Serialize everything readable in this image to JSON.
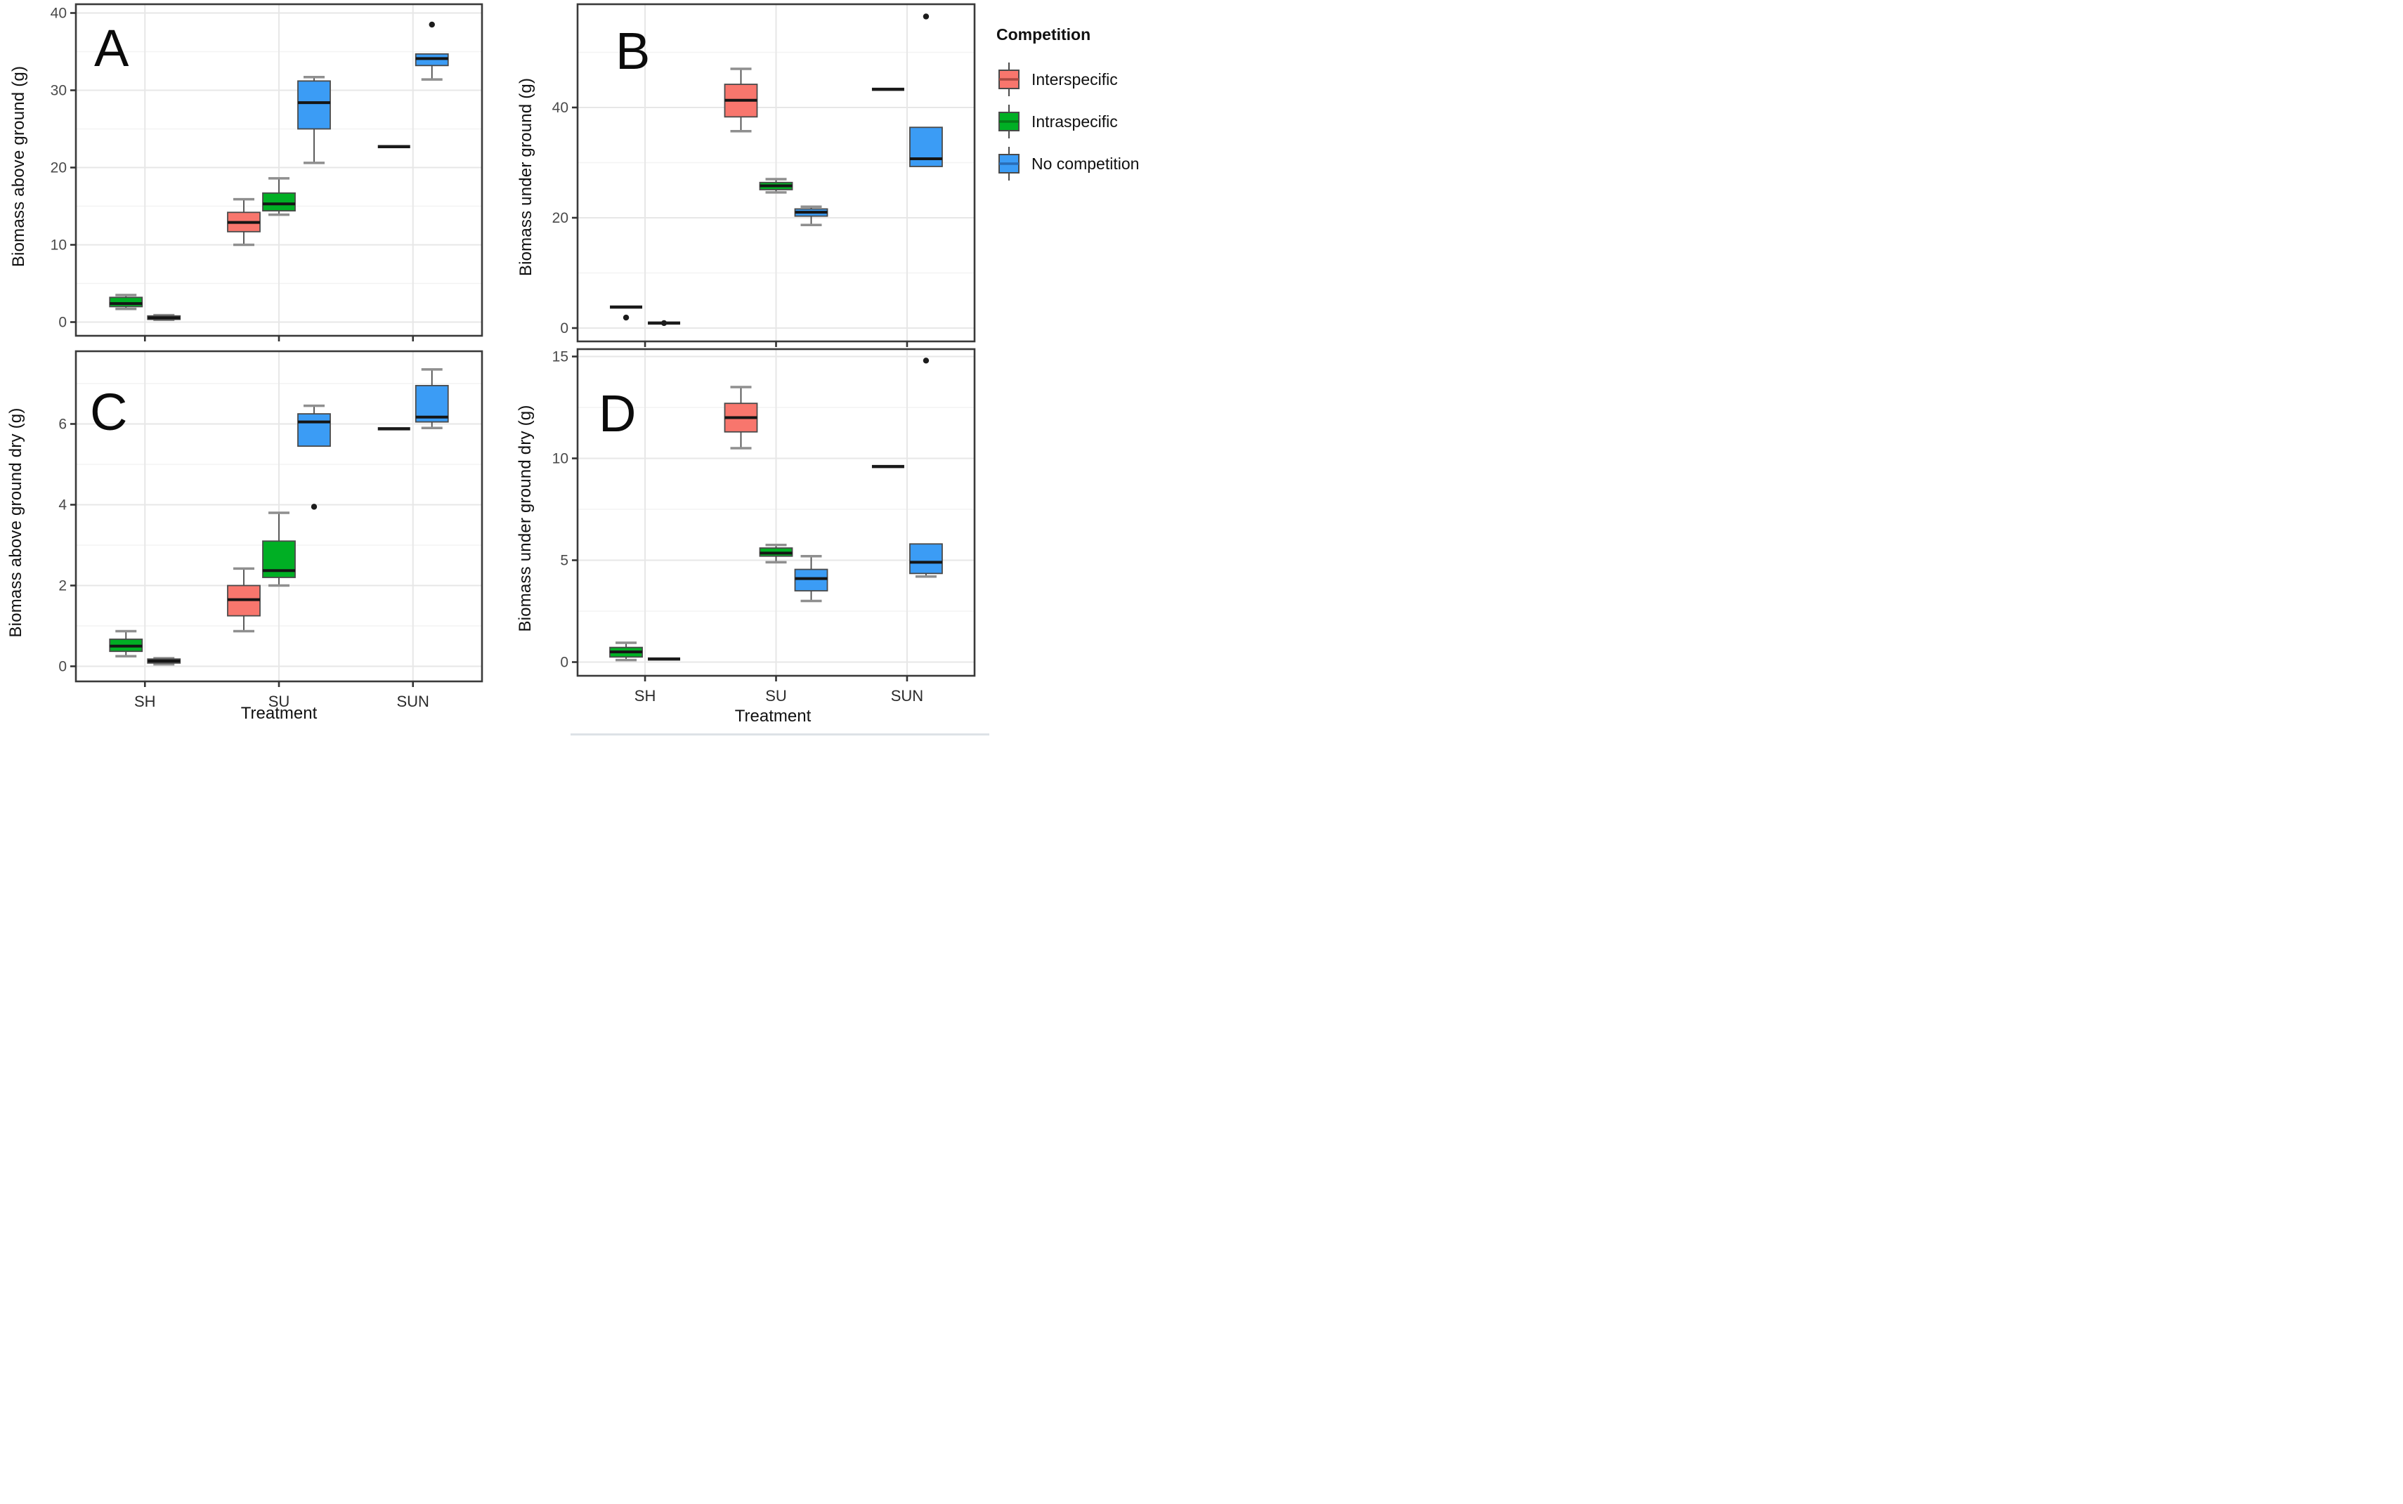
{
  "figure": {
    "background": "#ffffff"
  },
  "colors": {
    "interspecific": "#F8766D",
    "intraspecific": "#00AF24",
    "no_competition": "#3B9CF5",
    "interspecific_dark": "#a94a43",
    "intraspecific_dark": "#067a18",
    "no_competition_dark": "#2a6db5",
    "box_border": "#4a4a4a",
    "median": "#151515",
    "whisker_cap": "#8f8f8f",
    "grid_major": "#e7e7e7",
    "grid_minor": "#f3f3f3",
    "frame": "#3a3a3a",
    "tick_label": "#4a4a4a"
  },
  "legend": {
    "title": "Competition",
    "items": [
      {
        "id": "interspecific",
        "label": "Interspecific"
      },
      {
        "id": "intraspecific",
        "label": "Intraspecific"
      },
      {
        "id": "no_competition",
        "label": "No competition"
      }
    ]
  },
  "x_axis": {
    "title_left": "Treatment",
    "title_right": "Treatment",
    "categories": [
      "SH",
      "SU",
      "SUN"
    ]
  },
  "chart_data": {
    "type": "boxplot",
    "layout": {
      "rows": 2,
      "cols": 2,
      "legend_position": "right",
      "grid": "major and minor, light gray on white"
    },
    "categories": [
      "SH",
      "SU",
      "SUN"
    ],
    "competition_levels": [
      "Interspecific",
      "Intraspecific",
      "No competition"
    ],
    "panels": [
      {
        "id": "A",
        "letter": "A",
        "y_label": "Biomass above ground (g)",
        "y_range": [
          0,
          41
        ],
        "y_ticks": [
          0,
          10,
          20,
          30,
          40
        ],
        "y_minor": [
          5,
          15,
          25,
          35
        ],
        "groups": [
          {
            "treatment": "SH",
            "competition": "Intraspecific",
            "whisker_low": 1.7,
            "q1": 2.0,
            "median": 2.4,
            "q3": 3.2,
            "whisker_high": 3.5,
            "outliers": []
          },
          {
            "treatment": "SH",
            "competition": "No competition",
            "whisker_low": 0.3,
            "q1": 0.35,
            "median": 0.55,
            "q3": 0.8,
            "whisker_high": 0.9,
            "outliers": []
          },
          {
            "treatment": "SU",
            "competition": "Interspecific",
            "whisker_low": 10.0,
            "q1": 11.7,
            "median": 12.9,
            "q3": 14.2,
            "whisker_high": 15.9,
            "outliers": []
          },
          {
            "treatment": "SU",
            "competition": "Intraspecific",
            "whisker_low": 13.9,
            "q1": 14.4,
            "median": 15.3,
            "q3": 16.7,
            "whisker_high": 18.6,
            "outliers": []
          },
          {
            "treatment": "SU",
            "competition": "No competition",
            "whisker_low": 20.6,
            "q1": 25.0,
            "median": 28.4,
            "q3": 31.2,
            "whisker_high": 31.7,
            "outliers": []
          },
          {
            "treatment": "SUN",
            "competition": "Interspecific",
            "flat": true,
            "whisker_low": 22.7,
            "q1": 22.7,
            "median": 22.7,
            "q3": 22.7,
            "whisker_high": 22.7,
            "outliers": []
          },
          {
            "treatment": "SUN",
            "competition": "No competition",
            "whisker_low": 31.4,
            "q1": 33.2,
            "median": 34.1,
            "q3": 34.7,
            "whisker_high": 34.7,
            "outliers": [
              38.5
            ]
          }
        ]
      },
      {
        "id": "B",
        "letter": "B",
        "y_label": "Biomass under ground (g)",
        "y_range": [
          0,
          58.5
        ],
        "y_ticks": [
          0,
          20,
          40
        ],
        "y_minor": [
          10,
          30,
          50
        ],
        "groups": [
          {
            "treatment": "SH",
            "competition": "Intraspecific",
            "flat": true,
            "whisker_low": 3.8,
            "q1": 3.8,
            "median": 3.8,
            "q3": 3.8,
            "whisker_high": 3.8,
            "outliers": [
              1.9
            ]
          },
          {
            "treatment": "SH",
            "competition": "No competition",
            "flat": true,
            "whisker_low": 0.9,
            "q1": 0.9,
            "median": 0.9,
            "q3": 0.9,
            "whisker_high": 0.9,
            "outliers": [
              0.9
            ]
          },
          {
            "treatment": "SU",
            "competition": "Interspecific",
            "whisker_low": 35.7,
            "q1": 38.3,
            "median": 41.3,
            "q3": 44.2,
            "whisker_high": 47.0,
            "outliers": []
          },
          {
            "treatment": "SU",
            "competition": "Intraspecific",
            "whisker_low": 24.6,
            "q1": 25.1,
            "median": 25.8,
            "q3": 26.4,
            "whisker_high": 27.0,
            "outliers": []
          },
          {
            "treatment": "SU",
            "competition": "No competition",
            "whisker_low": 18.7,
            "q1": 20.3,
            "median": 21.0,
            "q3": 21.6,
            "whisker_high": 22.0,
            "outliers": []
          },
          {
            "treatment": "SUN",
            "competition": "Interspecific",
            "flat": true,
            "whisker_low": 43.3,
            "q1": 43.3,
            "median": 43.3,
            "q3": 43.3,
            "whisker_high": 43.3,
            "outliers": []
          },
          {
            "treatment": "SUN",
            "competition": "No competition",
            "whisker_low": 29.3,
            "q1": 29.3,
            "median": 30.7,
            "q3": 36.4,
            "whisker_high": 36.4,
            "outliers": [
              56.5
            ]
          }
        ]
      },
      {
        "id": "C",
        "letter": "C",
        "y_label": "Biomass above ground dry (g)",
        "y_range": [
          0,
          7.8
        ],
        "y_ticks": [
          0,
          2,
          4,
          6
        ],
        "y_minor": [
          1,
          3,
          5,
          7
        ],
        "groups": [
          {
            "treatment": "SH",
            "competition": "Intraspecific",
            "whisker_low": 0.25,
            "q1": 0.37,
            "median": 0.5,
            "q3": 0.67,
            "whisker_high": 0.87,
            "outliers": []
          },
          {
            "treatment": "SH",
            "competition": "No competition",
            "whisker_low": 0.05,
            "q1": 0.08,
            "median": 0.13,
            "q3": 0.18,
            "whisker_high": 0.2,
            "outliers": []
          },
          {
            "treatment": "SU",
            "competition": "Interspecific",
            "whisker_low": 0.87,
            "q1": 1.25,
            "median": 1.65,
            "q3": 2.0,
            "whisker_high": 2.42,
            "outliers": []
          },
          {
            "treatment": "SU",
            "competition": "Intraspecific",
            "whisker_low": 2.0,
            "q1": 2.2,
            "median": 2.37,
            "q3": 3.1,
            "whisker_high": 3.8,
            "outliers": []
          },
          {
            "treatment": "SU",
            "competition": "No competition",
            "whisker_low": 5.45,
            "q1": 5.45,
            "median": 6.05,
            "q3": 6.25,
            "whisker_high": 6.45,
            "outliers": [
              3.95
            ]
          },
          {
            "treatment": "SUN",
            "competition": "Interspecific",
            "flat": true,
            "whisker_low": 5.88,
            "q1": 5.88,
            "median": 5.88,
            "q3": 5.88,
            "whisker_high": 5.88,
            "outliers": []
          },
          {
            "treatment": "SUN",
            "competition": "No competition",
            "whisker_low": 5.9,
            "q1": 6.05,
            "median": 6.17,
            "q3": 6.95,
            "whisker_high": 7.35,
            "outliers": []
          }
        ]
      },
      {
        "id": "D",
        "letter": "D",
        "y_label": "Biomass under ground dry (g)",
        "y_range": [
          0,
          15.4
        ],
        "y_ticks": [
          0,
          5,
          10,
          15
        ],
        "y_minor": [
          2.5,
          7.5,
          12.5
        ],
        "groups": [
          {
            "treatment": "SH",
            "competition": "Intraspecific",
            "whisker_low": 0.1,
            "q1": 0.25,
            "median": 0.5,
            "q3": 0.72,
            "whisker_high": 0.95,
            "outliers": []
          },
          {
            "treatment": "SH",
            "competition": "No competition",
            "flat": true,
            "whisker_low": 0.15,
            "q1": 0.15,
            "median": 0.15,
            "q3": 0.15,
            "whisker_high": 0.15,
            "outliers": []
          },
          {
            "treatment": "SU",
            "competition": "Interspecific",
            "whisker_low": 10.5,
            "q1": 11.3,
            "median": 12.0,
            "q3": 12.7,
            "whisker_high": 13.5,
            "outliers": []
          },
          {
            "treatment": "SU",
            "competition": "Intraspecific",
            "whisker_low": 4.9,
            "q1": 5.2,
            "median": 5.35,
            "q3": 5.6,
            "whisker_high": 5.75,
            "outliers": []
          },
          {
            "treatment": "SU",
            "competition": "No competition",
            "whisker_low": 3.0,
            "q1": 3.5,
            "median": 4.1,
            "q3": 4.55,
            "whisker_high": 5.2,
            "outliers": []
          },
          {
            "treatment": "SUN",
            "competition": "Interspecific",
            "flat": true,
            "whisker_low": 9.6,
            "q1": 9.6,
            "median": 9.6,
            "q3": 9.6,
            "whisker_high": 9.6,
            "outliers": []
          },
          {
            "treatment": "SUN",
            "competition": "No competition",
            "whisker_low": 4.2,
            "q1": 4.35,
            "median": 4.9,
            "q3": 5.8,
            "whisker_high": 5.8,
            "outliers": [
              14.8
            ]
          }
        ]
      }
    ]
  }
}
